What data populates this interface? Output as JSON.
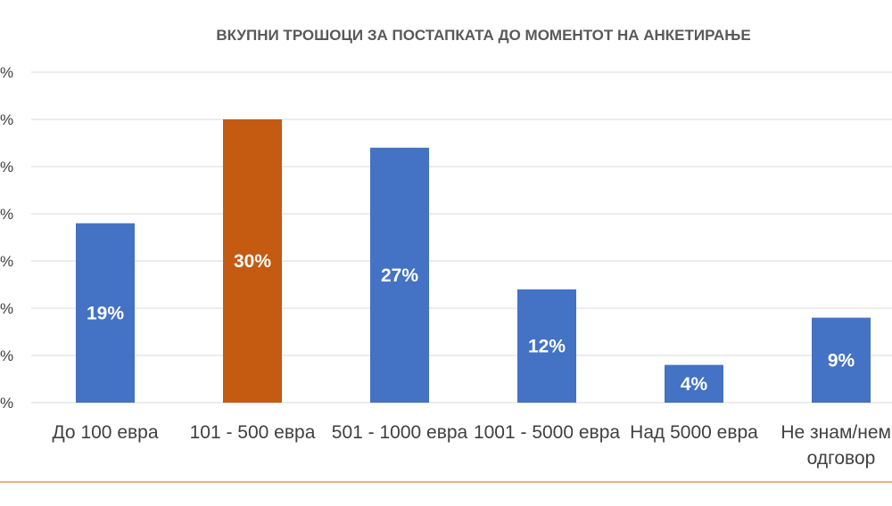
{
  "chart_data": {
    "type": "bar",
    "title": "ВКУПНИ ТРОШОЦИ ЗА ПОСТАПКАТА ДО МОМЕНТОТ НА АНКЕТИРАЊЕ",
    "categories": [
      [
        "До 100 евра"
      ],
      [
        "101 - 500 евра"
      ],
      [
        "501 - 1000 евра"
      ],
      [
        "1001 - 5000 евра"
      ],
      [
        "Над 5000 евра"
      ],
      [
        "Не знам/нема",
        "одговор"
      ]
    ],
    "values": [
      19,
      30,
      27,
      12,
      4,
      9
    ],
    "data_labels": [
      "19%",
      "30%",
      "27%",
      "12%",
      "4%",
      "9%"
    ],
    "y_tick_labels": [
      "%",
      "%",
      "%",
      "%",
      "%",
      "%",
      "%",
      "%"
    ],
    "ylim": [
      0,
      35
    ],
    "grid": true,
    "colors": {
      "default_bar": "#4472c4",
      "highlight_bar": "#c55a11",
      "gridline": "#d9d9d9",
      "footer_line": "#ed7d31"
    },
    "highlight_index": 1
  }
}
